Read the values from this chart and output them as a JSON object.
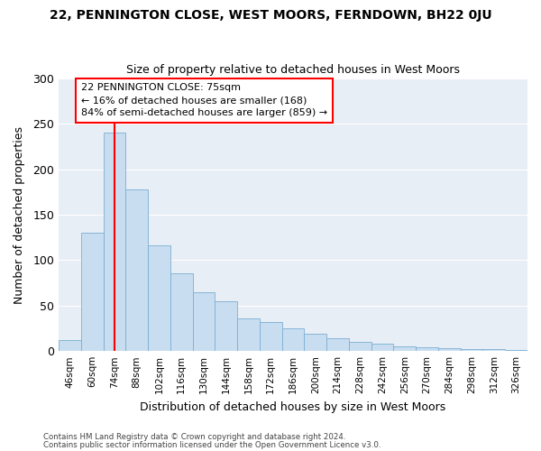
{
  "title": "22, PENNINGTON CLOSE, WEST MOORS, FERNDOWN, BH22 0JU",
  "subtitle": "Size of property relative to detached houses in West Moors",
  "xlabel": "Distribution of detached houses by size in West Moors",
  "ylabel": "Number of detached properties",
  "categories": [
    "46sqm",
    "60sqm",
    "74sqm",
    "88sqm",
    "102sqm",
    "116sqm",
    "130sqm",
    "144sqm",
    "158sqm",
    "172sqm",
    "186sqm",
    "200sqm",
    "214sqm",
    "228sqm",
    "242sqm",
    "256sqm",
    "270sqm",
    "284sqm",
    "298sqm",
    "312sqm",
    "326sqm"
  ],
  "bar_values": [
    12,
    130,
    240,
    178,
    116,
    86,
    65,
    55,
    36,
    32,
    25,
    19,
    14,
    10,
    8,
    5,
    4,
    3,
    2,
    2,
    1
  ],
  "bar_color": "#c9ddf0",
  "bar_edge_color": "#7aafd4",
  "vline_x_index": 2,
  "vline_color": "red",
  "annotation_line1": "22 PENNINGTON CLOSE: 75sqm",
  "annotation_line2": "← 16% of detached houses are smaller (168)",
  "annotation_line3": "84% of semi-detached houses are larger (859) →",
  "annotation_box_color": "white",
  "annotation_box_edge": "red",
  "ylim": [
    0,
    300
  ],
  "yticks": [
    0,
    50,
    100,
    150,
    200,
    250,
    300
  ],
  "plot_bg_color": "#e8eef5",
  "grid_color": "#ffffff",
  "footer1": "Contains HM Land Registry data © Crown copyright and database right 2024.",
  "footer2": "Contains public sector information licensed under the Open Government Licence v3.0."
}
